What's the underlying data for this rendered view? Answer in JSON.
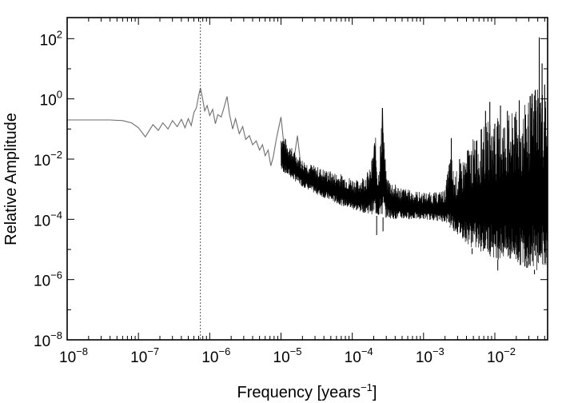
{
  "chart_data": {
    "type": "line",
    "title": "",
    "xlabel": "Frequency [years",
    "xlabel_sup": "−1",
    "xlabel_close": "]",
    "ylabel": "Relative Amplitude",
    "xscale": "log",
    "yscale": "log",
    "xlim": [
      1e-08,
      0.055
    ],
    "ylim": [
      1e-08,
      500
    ],
    "grid": false,
    "legend": "none",
    "x_ticks": [
      {
        "value": 1e-08,
        "base": "10",
        "exp": "−8"
      },
      {
        "value": 1e-07,
        "base": "10",
        "exp": "−7"
      },
      {
        "value": 1e-06,
        "base": "10",
        "exp": "−6"
      },
      {
        "value": 1e-05,
        "base": "10",
        "exp": "−5"
      },
      {
        "value": 0.0001,
        "base": "10",
        "exp": "−4"
      },
      {
        "value": 0.001,
        "base": "10",
        "exp": "−3"
      },
      {
        "value": 0.01,
        "base": "10",
        "exp": "−2"
      }
    ],
    "y_ticks": [
      {
        "value": 1e-08,
        "base": "10",
        "exp": "−8"
      },
      {
        "value": 1e-06,
        "base": "10",
        "exp": "−6"
      },
      {
        "value": 0.0001,
        "base": "10",
        "exp": "−4"
      },
      {
        "value": 0.01,
        "base": "10",
        "exp": "−2"
      },
      {
        "value": 1,
        "base": "10",
        "exp": "0"
      },
      {
        "value": 100,
        "base": "10",
        "exp": "2"
      }
    ],
    "reference_line": {
      "x": 7.4e-07,
      "style": "dotted"
    },
    "series": [
      {
        "color": "#6e6e6e",
        "points": [
          [
            1e-08,
            0.2
          ],
          [
            2e-08,
            0.2
          ],
          [
            4e-08,
            0.2
          ],
          [
            6e-08,
            0.19
          ],
          [
            8e-08,
            0.16
          ],
          [
            1e-07,
            0.11
          ],
          [
            1.25e-07,
            0.055
          ],
          [
            1.6e-07,
            0.14
          ],
          [
            1.9e-07,
            0.09
          ],
          [
            2.2e-07,
            0.16
          ],
          [
            2.6e-07,
            0.1
          ],
          [
            3e-07,
            0.19
          ],
          [
            3.5e-07,
            0.12
          ],
          [
            4e-07,
            0.21
          ],
          [
            4.5e-07,
            0.11
          ],
          [
            5e-07,
            0.22
          ],
          [
            5.5e-07,
            0.13
          ],
          [
            6e-07,
            0.35
          ],
          [
            6.5e-07,
            0.5
          ],
          [
            7e-07,
            1.3
          ],
          [
            7.4e-07,
            2.3
          ],
          [
            7.9e-07,
            1.1
          ],
          [
            8.5e-07,
            0.4
          ],
          [
            9.2e-07,
            0.6
          ],
          [
            1e-06,
            0.28
          ],
          [
            1.1e-06,
            0.45
          ],
          [
            1.2e-06,
            0.15
          ],
          [
            1.3e-06,
            0.3
          ],
          [
            1.45e-06,
            0.25
          ],
          [
            1.6e-06,
            0.55
          ],
          [
            1.75e-06,
            1.2
          ],
          [
            1.9e-06,
            0.3
          ],
          [
            2.1e-06,
            0.1
          ],
          [
            2.3e-06,
            0.22
          ],
          [
            2.6e-06,
            0.07
          ],
          [
            2.9e-06,
            0.12
          ],
          [
            3.2e-06,
            0.045
          ],
          [
            3.6e-06,
            0.06
          ],
          [
            4e-06,
            0.03
          ],
          [
            4.5e-06,
            0.04
          ],
          [
            5e-06,
            0.02
          ],
          [
            5.5e-06,
            0.03
          ],
          [
            6e-06,
            0.013
          ],
          [
            6.6e-06,
            0.02
          ],
          [
            7.2e-06,
            0.006
          ],
          [
            7.8e-06,
            0.012
          ],
          [
            8.5e-06,
            0.04
          ],
          [
            9.2e-06,
            0.1
          ],
          [
            1e-05,
            0.25
          ],
          [
            1.1e-05,
            0.03
          ],
          [
            1.2e-05,
            0.012
          ],
          [
            1.35e-05,
            0.02
          ],
          [
            1.5e-05,
            0.008
          ],
          [
            1.7e-05,
            0.06
          ],
          [
            1.9e-05,
            0.006
          ],
          [
            2.2e-05,
            0.005
          ],
          [
            2.5e-05,
            0.003
          ],
          [
            3e-05,
            0.004
          ],
          [
            3.5e-05,
            0.002
          ],
          [
            4e-05,
            0.0025
          ],
          [
            5e-05,
            0.0012
          ],
          [
            6e-05,
            0.0016
          ],
          [
            7e-05,
            0.0009
          ],
          [
            8e-05,
            0.0011
          ],
          [
            9e-05,
            0.0007
          ],
          [
            0.0001,
            0.0008
          ],
          [
            0.00012,
            0.0005
          ],
          [
            0.00014,
            0.0006
          ],
          [
            0.00016,
            0.0004
          ],
          [
            0.00018,
            0.0008
          ],
          [
            0.000195,
            0.003
          ],
          [
            0.000205,
            0.03
          ],
          [
            0.000215,
            0.002
          ],
          [
            0.00023,
            0.0009
          ],
          [
            0.00025,
            0.002
          ],
          [
            0.000265,
            0.5
          ],
          [
            0.00028,
            0.003
          ],
          [
            0.00032,
            0.0006
          ],
          [
            0.00038,
            0.0004
          ],
          [
            0.00045,
            0.00035
          ],
          [
            0.00055,
            0.0003
          ],
          [
            0.0007,
            0.0003
          ],
          [
            0.0009,
            0.0003
          ],
          [
            0.0012,
            0.00028
          ],
          [
            0.0016,
            0.0003
          ],
          [
            0.002,
            0.0003
          ],
          [
            0.0023,
            0.0004
          ],
          [
            0.0025,
            0.001
          ]
        ]
      },
      {
        "color": "#000000",
        "envelope": {
          "x_from": 1e-05,
          "x_to": 0.055,
          "upper": [
            [
              1e-05,
              0.08
            ],
            [
              1.5e-05,
              0.02
            ],
            [
              2e-05,
              0.01
            ],
            [
              3e-05,
              0.006
            ],
            [
              5e-05,
              0.004
            ],
            [
              8e-05,
              0.003
            ],
            [
              0.00012,
              0.002
            ],
            [
              0.00018,
              0.005
            ],
            [
              0.00021,
              0.08
            ],
            [
              0.00023,
              0.003
            ],
            [
              0.000265,
              0.5
            ],
            [
              0.0003,
              0.003
            ],
            [
              0.0004,
              0.0015
            ],
            [
              0.0006,
              0.001
            ],
            [
              0.001,
              0.0008
            ],
            [
              0.0015,
              0.0008
            ],
            [
              0.002,
              0.001
            ],
            [
              0.0024,
              0.02
            ],
            [
              0.0027,
              0.003
            ],
            [
              0.0035,
              0.01
            ],
            [
              0.005,
              0.05
            ],
            [
              0.008,
              0.2
            ],
            [
              0.015,
              0.3
            ],
            [
              0.025,
              0.5
            ],
            [
              0.04,
              5
            ],
            [
              0.055,
              1
            ]
          ],
          "lower": [
            [
              1e-05,
              0.004
            ],
            [
              1.5e-05,
              0.002
            ],
            [
              2e-05,
              0.0012
            ],
            [
              3e-05,
              0.0007
            ],
            [
              5e-05,
              0.0004
            ],
            [
              8e-05,
              0.00025
            ],
            [
              0.00012,
              0.00018
            ],
            [
              0.00018,
              0.00015
            ],
            [
              0.00025,
              0.00012
            ],
            [
              0.0004,
              0.0001
            ],
            [
              0.0006,
              0.0001
            ],
            [
              0.001,
              0.0001
            ],
            [
              0.0015,
              9e-05
            ],
            [
              0.002,
              8e-05
            ],
            [
              0.003,
              3e-05
            ],
            [
              0.005,
              1e-05
            ],
            [
              0.01,
              5e-06
            ],
            [
              0.02,
              3e-06
            ],
            [
              0.04,
              2e-06
            ],
            [
              0.055,
              3e-06
            ]
          ]
        },
        "peaks": [
          [
            0.000265,
            0.5
          ],
          [
            0.000205,
            0.03
          ],
          [
            0.00245,
            0.05
          ],
          [
            0.0032,
            0.01
          ],
          [
            0.0042,
            0.02
          ],
          [
            0.0055,
            0.04
          ],
          [
            0.0065,
            0.1
          ],
          [
            0.0074,
            0.4
          ],
          [
            0.0085,
            0.8
          ],
          [
            0.01,
            0.15
          ],
          [
            0.012,
            0.6
          ],
          [
            0.015,
            0.4
          ],
          [
            0.019,
            0.25
          ],
          [
            0.022,
            0.9
          ],
          [
            0.027,
            0.3
          ],
          [
            0.032,
            0.5
          ],
          [
            0.037,
            2.0
          ],
          [
            0.042,
            110
          ],
          [
            0.046,
            15
          ],
          [
            0.05,
            3.0
          ]
        ],
        "dips": [
          [
            0.00022,
            3e-05
          ],
          [
            0.00027,
            4e-05
          ],
          [
            0.00235,
            6e-05
          ],
          [
            0.0048,
            7e-06
          ],
          [
            0.011,
            2e-06
          ],
          [
            0.028,
            4e-06
          ],
          [
            0.036,
            1.5e-06
          ],
          [
            0.048,
            2.5e-06
          ]
        ]
      }
    ]
  }
}
